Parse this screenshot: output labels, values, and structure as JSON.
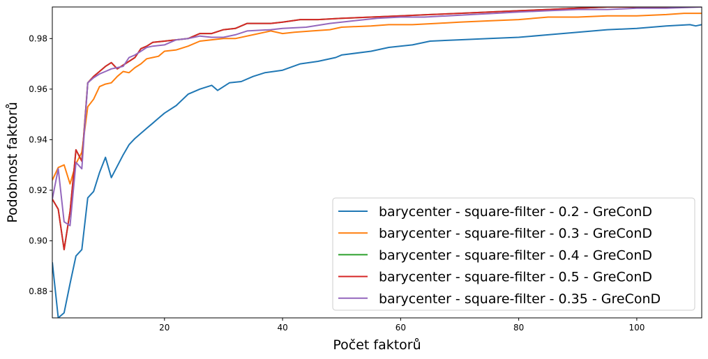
{
  "chart_data": {
    "type": "line",
    "title": "",
    "xlabel": "Počet faktorů",
    "ylabel": "Podobnost faktorů",
    "xlim": [
      1,
      111
    ],
    "ylim": [
      0.8695,
      0.9925
    ],
    "xticks": [
      20,
      40,
      60,
      80,
      100
    ],
    "yticks": [
      0.88,
      0.9,
      0.92,
      0.94,
      0.96,
      0.98
    ],
    "grid": false,
    "legend_position": "lower-right",
    "series": [
      {
        "name": "barycenter - square-filter - 0.2 - GreConD",
        "color": "#1f77b4",
        "points": [
          [
            1,
            0.8915
          ],
          [
            2,
            0.8695
          ],
          [
            3,
            0.8715
          ],
          [
            4,
            0.883
          ],
          [
            5,
            0.894
          ],
          [
            6,
            0.8965
          ],
          [
            7,
            0.917
          ],
          [
            8,
            0.9195
          ],
          [
            9,
            0.927
          ],
          [
            10,
            0.933
          ],
          [
            11,
            0.925
          ],
          [
            12,
            0.9295
          ],
          [
            13,
            0.934
          ],
          [
            14,
            0.938
          ],
          [
            15,
            0.9405
          ],
          [
            16,
            0.9425
          ],
          [
            17,
            0.9445
          ],
          [
            18,
            0.9465
          ],
          [
            19,
            0.9485
          ],
          [
            20,
            0.9505
          ],
          [
            22,
            0.9535
          ],
          [
            24,
            0.958
          ],
          [
            26,
            0.96
          ],
          [
            28,
            0.9615
          ],
          [
            29,
            0.9595
          ],
          [
            31,
            0.9625
          ],
          [
            33,
            0.963
          ],
          [
            35,
            0.965
          ],
          [
            37,
            0.9665
          ],
          [
            40,
            0.9675
          ],
          [
            43,
            0.97
          ],
          [
            46,
            0.971
          ],
          [
            49,
            0.9725
          ],
          [
            50,
            0.9735
          ],
          [
            55,
            0.975
          ],
          [
            58,
            0.9765
          ],
          [
            62,
            0.9775
          ],
          [
            65,
            0.979
          ],
          [
            70,
            0.9795
          ],
          [
            75,
            0.98
          ],
          [
            80,
            0.9805
          ],
          [
            85,
            0.9815
          ],
          [
            90,
            0.9825
          ],
          [
            95,
            0.9835
          ],
          [
            100,
            0.984
          ],
          [
            105,
            0.985
          ],
          [
            109,
            0.9855
          ],
          [
            110,
            0.985
          ],
          [
            111,
            0.9855
          ]
        ]
      },
      {
        "name": "barycenter - square-filter - 0.3 - GreConD",
        "color": "#ff7f0e",
        "points": [
          [
            1,
            0.924
          ],
          [
            2,
            0.929
          ],
          [
            3,
            0.93
          ],
          [
            4,
            0.9225
          ],
          [
            5,
            0.9305
          ],
          [
            6,
            0.935
          ],
          [
            7,
            0.953
          ],
          [
            8,
            0.956
          ],
          [
            9,
            0.961
          ],
          [
            10,
            0.962
          ],
          [
            11,
            0.9625
          ],
          [
            12,
            0.965
          ],
          [
            13,
            0.967
          ],
          [
            14,
            0.9665
          ],
          [
            15,
            0.9685
          ],
          [
            16,
            0.97
          ],
          [
            17,
            0.972
          ],
          [
            18,
            0.9725
          ],
          [
            19,
            0.973
          ],
          [
            20,
            0.975
          ],
          [
            22,
            0.9755
          ],
          [
            24,
            0.977
          ],
          [
            26,
            0.979
          ],
          [
            28,
            0.9795
          ],
          [
            30,
            0.98
          ],
          [
            32,
            0.98
          ],
          [
            35,
            0.9815
          ],
          [
            38,
            0.983
          ],
          [
            40,
            0.982
          ],
          [
            42,
            0.9825
          ],
          [
            45,
            0.983
          ],
          [
            48,
            0.9835
          ],
          [
            50,
            0.9845
          ],
          [
            55,
            0.985
          ],
          [
            58,
            0.9855
          ],
          [
            62,
            0.9855
          ],
          [
            66,
            0.986
          ],
          [
            70,
            0.9865
          ],
          [
            75,
            0.987
          ],
          [
            80,
            0.9875
          ],
          [
            85,
            0.9885
          ],
          [
            90,
            0.9885
          ],
          [
            95,
            0.989
          ],
          [
            100,
            0.989
          ],
          [
            105,
            0.9895
          ],
          [
            108,
            0.99
          ],
          [
            111,
            0.99
          ]
        ]
      },
      {
        "name": "barycenter - square-filter - 0.4 - GreConD",
        "color": "#2ca02c",
        "points": [
          [
            1,
            0.9165
          ],
          [
            2,
            0.9125
          ],
          [
            3,
            0.8965
          ],
          [
            4,
            0.9115
          ],
          [
            5,
            0.936
          ],
          [
            6,
            0.9315
          ],
          [
            7,
            0.9625
          ],
          [
            8,
            0.965
          ],
          [
            9,
            0.967
          ],
          [
            10,
            0.969
          ],
          [
            11,
            0.9705
          ],
          [
            12,
            0.968
          ],
          [
            13,
            0.9695
          ],
          [
            14,
            0.971
          ],
          [
            15,
            0.9725
          ],
          [
            16,
            0.976
          ],
          [
            17,
            0.977
          ],
          [
            18,
            0.9785
          ],
          [
            20,
            0.979
          ],
          [
            22,
            0.9795
          ],
          [
            24,
            0.98
          ],
          [
            26,
            0.982
          ],
          [
            28,
            0.982
          ],
          [
            30,
            0.9835
          ],
          [
            32,
            0.984
          ],
          [
            34,
            0.986
          ],
          [
            38,
            0.986
          ],
          [
            40,
            0.9865
          ],
          [
            43,
            0.9875
          ],
          [
            46,
            0.9875
          ],
          [
            50,
            0.988
          ],
          [
            55,
            0.9885
          ],
          [
            60,
            0.989
          ],
          [
            65,
            0.9895
          ],
          [
            70,
            0.99
          ],
          [
            75,
            0.9905
          ],
          [
            80,
            0.991
          ],
          [
            85,
            0.9915
          ],
          [
            90,
            0.992
          ],
          [
            95,
            0.9925
          ],
          [
            100,
            0.9925
          ],
          [
            105,
            0.9925
          ],
          [
            111,
            0.9925
          ]
        ]
      },
      {
        "name": "barycenter - square-filter - 0.5 - GreConD",
        "color": "#d62728",
        "points": [
          [
            1,
            0.9165
          ],
          [
            2,
            0.9125
          ],
          [
            3,
            0.8965
          ],
          [
            4,
            0.9115
          ],
          [
            5,
            0.936
          ],
          [
            6,
            0.9315
          ],
          [
            7,
            0.9625
          ],
          [
            8,
            0.965
          ],
          [
            9,
            0.967
          ],
          [
            10,
            0.969
          ],
          [
            11,
            0.9705
          ],
          [
            12,
            0.968
          ],
          [
            13,
            0.9695
          ],
          [
            14,
            0.971
          ],
          [
            15,
            0.9725
          ],
          [
            16,
            0.976
          ],
          [
            17,
            0.977
          ],
          [
            18,
            0.9785
          ],
          [
            20,
            0.979
          ],
          [
            22,
            0.9795
          ],
          [
            24,
            0.98
          ],
          [
            26,
            0.982
          ],
          [
            28,
            0.982
          ],
          [
            30,
            0.9835
          ],
          [
            32,
            0.984
          ],
          [
            34,
            0.986
          ],
          [
            38,
            0.986
          ],
          [
            40,
            0.9865
          ],
          [
            43,
            0.9875
          ],
          [
            46,
            0.9875
          ],
          [
            50,
            0.988
          ],
          [
            55,
            0.9885
          ],
          [
            60,
            0.989
          ],
          [
            65,
            0.9895
          ],
          [
            70,
            0.99
          ],
          [
            75,
            0.9905
          ],
          [
            80,
            0.991
          ],
          [
            85,
            0.9915
          ],
          [
            90,
            0.992
          ],
          [
            95,
            0.9925
          ],
          [
            100,
            0.9925
          ],
          [
            105,
            0.9925
          ],
          [
            111,
            0.9925
          ]
        ]
      },
      {
        "name": "barycenter - square-filter - 0.35 - GreConD",
        "color": "#9467bd",
        "points": [
          [
            1,
            0.9165
          ],
          [
            2,
            0.9285
          ],
          [
            3,
            0.9075
          ],
          [
            4,
            0.906
          ],
          [
            5,
            0.931
          ],
          [
            6,
            0.9285
          ],
          [
            7,
            0.9625
          ],
          [
            8,
            0.9645
          ],
          [
            9,
            0.966
          ],
          [
            10,
            0.967
          ],
          [
            11,
            0.968
          ],
          [
            12,
            0.9685
          ],
          [
            13,
            0.969
          ],
          [
            14,
            0.9725
          ],
          [
            15,
            0.9735
          ],
          [
            16,
            0.975
          ],
          [
            17,
            0.9765
          ],
          [
            18,
            0.977
          ],
          [
            20,
            0.9775
          ],
          [
            22,
            0.9795
          ],
          [
            24,
            0.98
          ],
          [
            26,
            0.981
          ],
          [
            28,
            0.9805
          ],
          [
            30,
            0.9805
          ],
          [
            32,
            0.9815
          ],
          [
            34,
            0.983
          ],
          [
            38,
            0.9835
          ],
          [
            40,
            0.984
          ],
          [
            44,
            0.9845
          ],
          [
            48,
            0.986
          ],
          [
            52,
            0.987
          ],
          [
            56,
            0.988
          ],
          [
            60,
            0.9885
          ],
          [
            64,
            0.9885
          ],
          [
            68,
            0.989
          ],
          [
            72,
            0.9895
          ],
          [
            76,
            0.99
          ],
          [
            80,
            0.9905
          ],
          [
            85,
            0.991
          ],
          [
            90,
            0.9915
          ],
          [
            95,
            0.9915
          ],
          [
            100,
            0.992
          ],
          [
            105,
            0.992
          ],
          [
            111,
            0.9925
          ]
        ]
      }
    ]
  }
}
